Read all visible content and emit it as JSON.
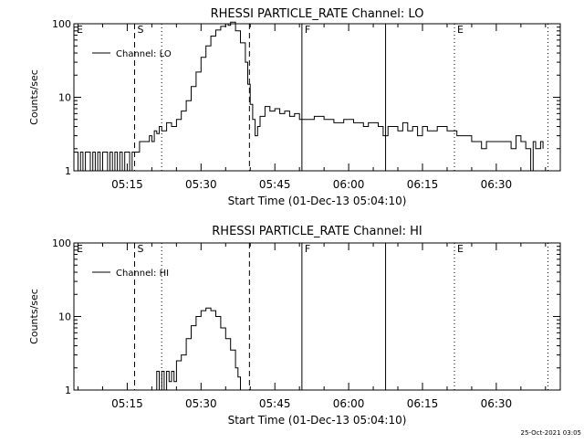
{
  "footer_timestamp": "25-Oct-2021 03:05",
  "chart_data": [
    {
      "type": "line",
      "title": "RHESSI PARTICLE_RATE Channel: LO",
      "xlabel": "Start Time (01-Dec-13 05:04:10)",
      "ylabel": "Counts/sec",
      "y_scale": "log",
      "ylim": [
        1,
        100
      ],
      "xlim": [
        "05:04:10",
        "06:43:00"
      ],
      "y_ticks": [
        "1",
        "10",
        "100"
      ],
      "x_ticks": [
        "05:15",
        "05:30",
        "05:45",
        "06:00",
        "06:15",
        "06:30"
      ],
      "legend": {
        "position": "top-left",
        "label": "Channel: LO"
      },
      "series": [
        {
          "name": "Channel: LO",
          "color": "#000000",
          "points": [
            [
              "05:04:10",
              1.8
            ],
            [
              "05:05:00",
              1.0
            ],
            [
              "05:05:30",
              1.8
            ],
            [
              "05:06:00",
              1.0
            ],
            [
              "05:06:30",
              1.8
            ],
            [
              "05:07:00",
              1.8
            ],
            [
              "05:07:30",
              1.0
            ],
            [
              "05:08:00",
              1.8
            ],
            [
              "05:08:30",
              1.0
            ],
            [
              "05:09:00",
              1.8
            ],
            [
              "05:09:30",
              1.0
            ],
            [
              "05:10:00",
              1.8
            ],
            [
              "05:10:30",
              1.8
            ],
            [
              "05:11:00",
              1.0
            ],
            [
              "05:11:30",
              1.8
            ],
            [
              "05:12:00",
              1.0
            ],
            [
              "05:12:30",
              1.8
            ],
            [
              "05:13:00",
              1.0
            ],
            [
              "05:13:30",
              1.8
            ],
            [
              "05:14:00",
              1.0
            ],
            [
              "05:14:30",
              1.8
            ],
            [
              "05:15:00",
              1.8
            ],
            [
              "05:15:30",
              1.0
            ],
            [
              "05:16:00",
              1.8
            ],
            [
              "05:17:00",
              1.8
            ],
            [
              "05:17:30",
              2.5
            ],
            [
              "05:19:00",
              2.5
            ],
            [
              "05:19:30",
              3.0
            ],
            [
              "05:20:00",
              2.5
            ],
            [
              "05:20:30",
              3.5
            ],
            [
              "05:21:00",
              3.2
            ],
            [
              "05:21:30",
              4.0
            ],
            [
              "05:22:00",
              3.5
            ],
            [
              "05:23:00",
              4.5
            ],
            [
              "05:24:00",
              4.0
            ],
            [
              "05:25:00",
              5.0
            ],
            [
              "05:26:00",
              6.5
            ],
            [
              "05:27:00",
              9.0
            ],
            [
              "05:28:00",
              14.0
            ],
            [
              "05:29:00",
              22.0
            ],
            [
              "05:30:00",
              35.0
            ],
            [
              "05:31:00",
              50.0
            ],
            [
              "05:32:00",
              68.0
            ],
            [
              "05:33:00",
              82.0
            ],
            [
              "05:34:00",
              92.0
            ],
            [
              "05:35:00",
              100.0
            ],
            [
              "05:35:30",
              95.0
            ],
            [
              "05:36:00",
              105.0
            ],
            [
              "05:37:00",
              80.0
            ],
            [
              "05:38:00",
              55.0
            ],
            [
              "05:39:00",
              30.0
            ],
            [
              "05:39:30",
              15.0
            ],
            [
              "05:40:00",
              8.0
            ],
            [
              "05:40:30",
              5.0
            ],
            [
              "05:41:00",
              3.0
            ],
            [
              "05:41:30",
              4.0
            ],
            [
              "05:42:00",
              5.5
            ],
            [
              "05:43:00",
              7.5
            ],
            [
              "05:44:00",
              6.5
            ],
            [
              "05:45:00",
              7.0
            ],
            [
              "05:46:00",
              6.0
            ],
            [
              "05:47:00",
              6.5
            ],
            [
              "05:48:00",
              5.5
            ],
            [
              "05:49:00",
              6.0
            ],
            [
              "05:50:00",
              5.0
            ],
            [
              "05:52:00",
              5.0
            ],
            [
              "05:53:00",
              5.5
            ],
            [
              "05:55:00",
              5.0
            ],
            [
              "05:57:00",
              4.5
            ],
            [
              "05:59:00",
              5.0
            ],
            [
              "06:01:00",
              4.5
            ],
            [
              "06:03:00",
              4.0
            ],
            [
              "06:04:00",
              4.5
            ],
            [
              "06:06:00",
              4.0
            ],
            [
              "06:07:00",
              3.0
            ],
            [
              "06:08:00",
              4.0
            ],
            [
              "06:10:00",
              3.5
            ],
            [
              "06:11:00",
              4.5
            ],
            [
              "06:12:00",
              3.5
            ],
            [
              "06:13:00",
              4.0
            ],
            [
              "06:14:00",
              3.0
            ],
            [
              "06:15:00",
              4.0
            ],
            [
              "06:16:00",
              3.5
            ],
            [
              "06:18:00",
              4.0
            ],
            [
              "06:20:00",
              3.5
            ],
            [
              "06:22:00",
              3.0
            ],
            [
              "06:24:00",
              3.0
            ],
            [
              "06:25:00",
              2.5
            ],
            [
              "06:26:00",
              2.5
            ],
            [
              "06:27:00",
              2.0
            ],
            [
              "06:28:00",
              2.5
            ],
            [
              "06:30:00",
              2.5
            ],
            [
              "06:32:00",
              2.5
            ],
            [
              "06:33:00",
              2.0
            ],
            [
              "06:34:00",
              3.0
            ],
            [
              "06:35:00",
              2.5
            ],
            [
              "06:36:00",
              2.0
            ],
            [
              "06:37:00",
              1.0
            ],
            [
              "06:37:30",
              2.5
            ],
            [
              "06:38:00",
              2.0
            ],
            [
              "06:39:00",
              2.5
            ],
            [
              "06:39:30",
              2.0
            ]
          ]
        }
      ],
      "markers": [
        {
          "label": "E",
          "time": "05:04:10",
          "style": "solid"
        },
        {
          "label": "S",
          "time": "05:16:30",
          "style": "dashed"
        },
        {
          "label": "",
          "time": "05:22:00",
          "style": "dotted"
        },
        {
          "label": "",
          "time": "05:39:50",
          "style": "dashed"
        },
        {
          "label": "F",
          "time": "05:50:30",
          "style": "solid"
        },
        {
          "label": "",
          "time": "06:07:30",
          "style": "solid"
        },
        {
          "label": "E",
          "time": "06:21:30",
          "style": "dotted"
        },
        {
          "label": "",
          "time": "06:40:30",
          "style": "dotted"
        }
      ]
    },
    {
      "type": "line",
      "title": "RHESSI PARTICLE_RATE Channel: HI",
      "xlabel": "Start Time (01-Dec-13 05:04:10)",
      "ylabel": "Counts/sec",
      "y_scale": "log",
      "ylim": [
        1,
        100
      ],
      "xlim": [
        "05:04:10",
        "06:43:00"
      ],
      "y_ticks": [
        "1",
        "10",
        "100"
      ],
      "x_ticks": [
        "05:15",
        "05:30",
        "05:45",
        "06:00",
        "06:15",
        "06:30"
      ],
      "legend": {
        "position": "top-left",
        "label": "Channel: HI"
      },
      "series": [
        {
          "name": "Channel: HI",
          "color": "#000000",
          "points": [
            [
              "05:20:30",
              1.0
            ],
            [
              "05:21:00",
              1.8
            ],
            [
              "05:21:30",
              1.0
            ],
            [
              "05:22:00",
              1.8
            ],
            [
              "05:22:30",
              1.0
            ],
            [
              "05:23:00",
              1.8
            ],
            [
              "05:23:30",
              1.3
            ],
            [
              "05:24:00",
              1.8
            ],
            [
              "05:24:30",
              1.3
            ],
            [
              "05:25:00",
              2.5
            ],
            [
              "05:26:00",
              3.0
            ],
            [
              "05:27:00",
              5.0
            ],
            [
              "05:28:00",
              7.5
            ],
            [
              "05:29:00",
              10.0
            ],
            [
              "05:30:00",
              12.0
            ],
            [
              "05:31:00",
              13.0
            ],
            [
              "05:32:00",
              12.0
            ],
            [
              "05:33:00",
              10.0
            ],
            [
              "05:34:00",
              7.0
            ],
            [
              "05:35:00",
              5.0
            ],
            [
              "05:36:00",
              3.5
            ],
            [
              "05:37:00",
              2.0
            ],
            [
              "05:37:30",
              1.5
            ],
            [
              "05:38:00",
              1.0
            ]
          ]
        }
      ],
      "markers": [
        {
          "label": "E",
          "time": "05:04:10",
          "style": "solid"
        },
        {
          "label": "S",
          "time": "05:16:30",
          "style": "dashed"
        },
        {
          "label": "",
          "time": "05:22:00",
          "style": "dotted"
        },
        {
          "label": "",
          "time": "05:39:50",
          "style": "dashed"
        },
        {
          "label": "F",
          "time": "05:50:30",
          "style": "solid"
        },
        {
          "label": "",
          "time": "06:07:30",
          "style": "solid"
        },
        {
          "label": "E",
          "time": "06:21:30",
          "style": "dotted"
        },
        {
          "label": "",
          "time": "06:40:30",
          "style": "dotted"
        }
      ]
    }
  ]
}
